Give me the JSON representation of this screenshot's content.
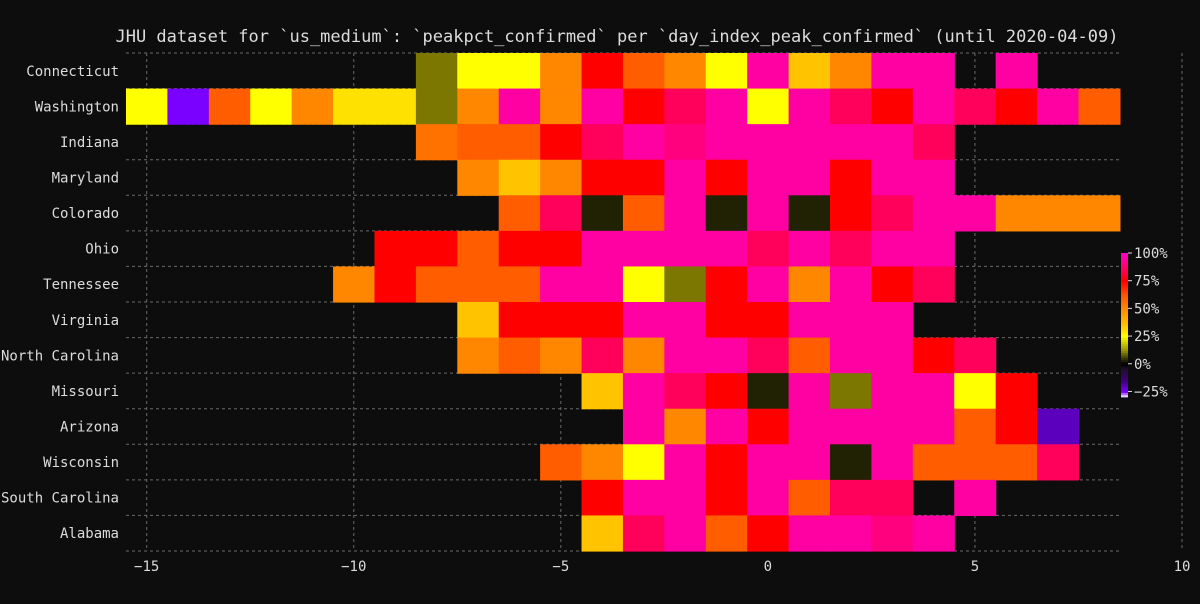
{
  "chart_data": {
    "type": "heatmap",
    "title": "JHU dataset for `us_medium`: `peakpct_confirmed` per `day_index_peak_confirmed` (until 2020-04-09)",
    "xlabel": "",
    "ylabel": "",
    "x_ticks": [
      -15,
      -10,
      -5,
      0,
      5,
      10
    ],
    "xlim": [
      -15.5,
      10
    ],
    "x_start": -15,
    "x_end": 8,
    "grid": true,
    "rows": [
      {
        "label": "Connecticut",
        "values": [
          null,
          null,
          null,
          null,
          null,
          null,
          null,
          10,
          25,
          25,
          50,
          75,
          60,
          50,
          25,
          95,
          35,
          50,
          95,
          95,
          null,
          95,
          null,
          null
        ]
      },
      {
        "label": "Washington",
        "values": [
          25,
          -25,
          60,
          25,
          50,
          30,
          30,
          10,
          50,
          95,
          50,
          95,
          75,
          85,
          95,
          25,
          95,
          85,
          75,
          95,
          85,
          75,
          95,
          60
        ]
      },
      {
        "label": "Indiana",
        "values": [
          null,
          null,
          null,
          null,
          null,
          null,
          null,
          55,
          60,
          60,
          75,
          85,
          95,
          90,
          95,
          95,
          95,
          95,
          95,
          85,
          null,
          null,
          null,
          null
        ]
      },
      {
        "label": "Maryland",
        "values": [
          null,
          null,
          null,
          null,
          null,
          null,
          null,
          null,
          50,
          35,
          50,
          75,
          75,
          95,
          75,
          95,
          95,
          75,
          95,
          95,
          null,
          null,
          null,
          null
        ]
      },
      {
        "label": "Colorado",
        "values": [
          null,
          null,
          null,
          null,
          null,
          null,
          null,
          null,
          null,
          60,
          85,
          3,
          60,
          95,
          3,
          95,
          3,
          75,
          85,
          95,
          95,
          50,
          50,
          50
        ]
      },
      {
        "label": "Ohio",
        "values": [
          null,
          null,
          null,
          null,
          null,
          null,
          75,
          75,
          60,
          75,
          75,
          95,
          95,
          95,
          95,
          85,
          95,
          85,
          95,
          95,
          null,
          null,
          null,
          null
        ]
      },
      {
        "label": "Tennessee",
        "values": [
          null,
          null,
          null,
          null,
          null,
          50,
          75,
          60,
          60,
          60,
          95,
          95,
          25,
          10,
          75,
          95,
          50,
          95,
          75,
          85,
          null,
          null,
          null,
          null
        ]
      },
      {
        "label": "Virginia",
        "values": [
          null,
          null,
          null,
          null,
          null,
          null,
          null,
          null,
          35,
          75,
          75,
          75,
          95,
          95,
          75,
          75,
          95,
          95,
          95,
          null,
          null,
          null,
          null,
          null
        ]
      },
      {
        "label": "North Carolina",
        "values": [
          null,
          null,
          null,
          null,
          null,
          null,
          null,
          null,
          50,
          60,
          50,
          85,
          50,
          95,
          95,
          85,
          60,
          95,
          95,
          75,
          85,
          null,
          null,
          null
        ]
      },
      {
        "label": "Missouri",
        "values": [
          null,
          null,
          null,
          null,
          null,
          null,
          null,
          null,
          null,
          null,
          null,
          35,
          95,
          85,
          75,
          3,
          95,
          10,
          95,
          95,
          25,
          75,
          null,
          null
        ]
      },
      {
        "label": "Arizona",
        "values": [
          null,
          null,
          null,
          null,
          null,
          null,
          null,
          null,
          null,
          null,
          null,
          null,
          95,
          50,
          95,
          75,
          95,
          95,
          95,
          95,
          60,
          75,
          -20,
          null
        ]
      },
      {
        "label": "Wisconsin",
        "values": [
          null,
          null,
          null,
          null,
          null,
          null,
          null,
          null,
          null,
          null,
          60,
          50,
          25,
          95,
          75,
          95,
          95,
          3,
          95,
          60,
          60,
          60,
          85,
          null
        ]
      },
      {
        "label": "South Carolina",
        "values": [
          null,
          null,
          null,
          null,
          null,
          null,
          null,
          null,
          null,
          null,
          null,
          75,
          95,
          95,
          75,
          95,
          60,
          85,
          85,
          null,
          95,
          null,
          null,
          null
        ]
      },
      {
        "label": "Alabama",
        "values": [
          null,
          null,
          null,
          null,
          null,
          null,
          null,
          null,
          null,
          null,
          null,
          35,
          85,
          95,
          60,
          75,
          95,
          95,
          90,
          95,
          null,
          null,
          null,
          null
        ]
      }
    ],
    "colorbar": {
      "ticks": [
        100,
        75,
        50,
        25,
        0,
        -25
      ],
      "tick_labels": [
        "100%",
        "75%",
        "50%",
        "25%",
        "0%",
        "−25%"
      ],
      "range": [
        -30,
        100
      ]
    },
    "colors": {
      "background": "#0d0d0d",
      "grid": "#6a6a6a",
      "text": "#dcdcdc"
    }
  }
}
